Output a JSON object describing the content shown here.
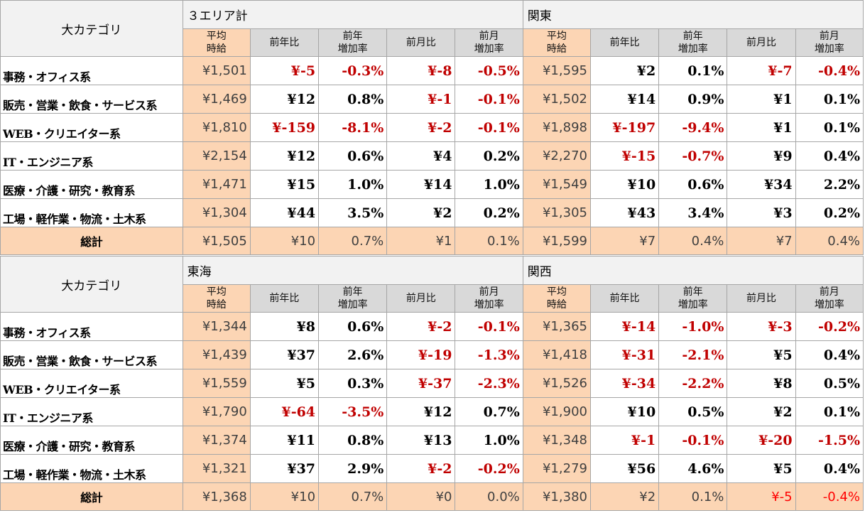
{
  "category_header": "大カテゴリ",
  "sub_headers": {
    "avg": [
      "平均",
      "時給"
    ],
    "yoy": "前年比",
    "yoy_rate": [
      "前年",
      "増加率"
    ],
    "mom": "前月比",
    "mom_rate": [
      "前月",
      "増加率"
    ]
  },
  "categories": [
    "事務・オフィス系",
    "販売・営業・飲食・サービス系",
    "WEB・クリエイター系",
    "IT・エンジニア系",
    "医療・介護・研究・教育系",
    "工場・軽作業・物流・土木系"
  ],
  "total_label": "総計",
  "tables": [
    {
      "regions": [
        {
          "name": "３エリア計",
          "rows": [
            [
              "¥1,501",
              "¥-5",
              "-0.3%",
              "¥-8",
              "-0.5%"
            ],
            [
              "¥1,469",
              "¥12",
              "0.8%",
              "¥-1",
              "-0.1%"
            ],
            [
              "¥1,810",
              "¥-159",
              "-8.1%",
              "¥-2",
              "-0.1%"
            ],
            [
              "¥2,154",
              "¥12",
              "0.6%",
              "¥4",
              "0.2%"
            ],
            [
              "¥1,471",
              "¥15",
              "1.0%",
              "¥14",
              "1.0%"
            ],
            [
              "¥1,304",
              "¥44",
              "3.5%",
              "¥2",
              "0.2%"
            ]
          ],
          "total": [
            "¥1,505",
            "¥10",
            "0.7%",
            "¥1",
            "0.1%"
          ]
        },
        {
          "name": "関東",
          "rows": [
            [
              "¥1,595",
              "¥2",
              "0.1%",
              "¥-7",
              "-0.4%"
            ],
            [
              "¥1,502",
              "¥14",
              "0.9%",
              "¥1",
              "0.1%"
            ],
            [
              "¥1,898",
              "¥-197",
              "-9.4%",
              "¥1",
              "0.1%"
            ],
            [
              "¥2,270",
              "¥-15",
              "-0.7%",
              "¥9",
              "0.4%"
            ],
            [
              "¥1,549",
              "¥10",
              "0.6%",
              "¥34",
              "2.2%"
            ],
            [
              "¥1,305",
              "¥43",
              "3.4%",
              "¥3",
              "0.2%"
            ]
          ],
          "total": [
            "¥1,599",
            "¥7",
            "0.4%",
            "¥7",
            "0.4%"
          ]
        }
      ]
    },
    {
      "regions": [
        {
          "name": "東海",
          "rows": [
            [
              "¥1,344",
              "¥8",
              "0.6%",
              "¥-2",
              "-0.1%"
            ],
            [
              "¥1,439",
              "¥37",
              "2.6%",
              "¥-19",
              "-1.3%"
            ],
            [
              "¥1,559",
              "¥5",
              "0.3%",
              "¥-37",
              "-2.3%"
            ],
            [
              "¥1,790",
              "¥-64",
              "-3.5%",
              "¥12",
              "0.7%"
            ],
            [
              "¥1,374",
              "¥11",
              "0.8%",
              "¥13",
              "1.0%"
            ],
            [
              "¥1,321",
              "¥37",
              "2.9%",
              "¥-2",
              "-0.2%"
            ]
          ],
          "total": [
            "¥1,368",
            "¥10",
            "0.7%",
            "¥0",
            "0.0%"
          ]
        },
        {
          "name": "関西",
          "rows": [
            [
              "¥1,365",
              "¥-14",
              "-1.0%",
              "¥-3",
              "-0.2%"
            ],
            [
              "¥1,418",
              "¥-31",
              "-2.1%",
              "¥5",
              "0.4%"
            ],
            [
              "¥1,526",
              "¥-34",
              "-2.2%",
              "¥8",
              "0.5%"
            ],
            [
              "¥1,900",
              "¥10",
              "0.5%",
              "¥2",
              "0.1%"
            ],
            [
              "¥1,348",
              "¥-1",
              "-0.1%",
              "¥-20",
              "-1.5%"
            ],
            [
              "¥1,279",
              "¥56",
              "4.6%",
              "¥5",
              "0.4%"
            ]
          ],
          "total": [
            "¥1,380",
            "¥2",
            "0.1%",
            "¥-5",
            "-0.4%"
          ]
        }
      ]
    }
  ]
}
